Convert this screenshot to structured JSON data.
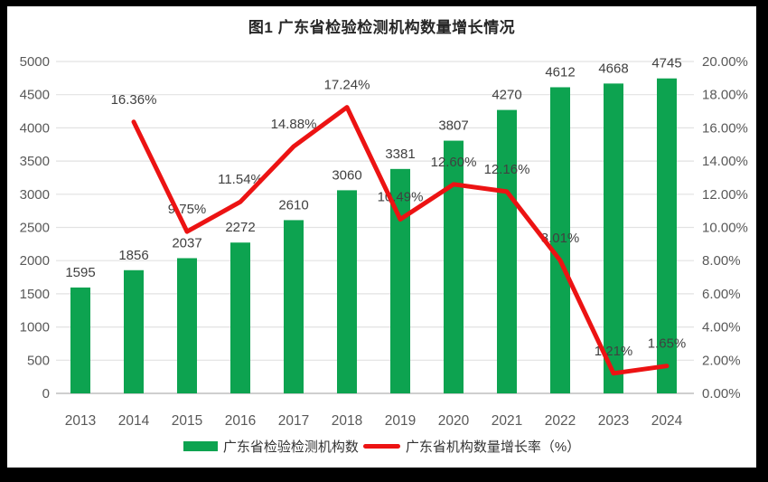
{
  "frame": {
    "border_color": "#000000",
    "canvas_background": "#ffffff"
  },
  "chart_data": {
    "type": "bar",
    "title": "图1 广东省检验检测机构数量增长情况",
    "categories": [
      "2013",
      "2014",
      "2015",
      "2016",
      "2017",
      "2018",
      "2019",
      "2020",
      "2021",
      "2022",
      "2023",
      "2024"
    ],
    "series": [
      {
        "name": "广东省检验检测机构数",
        "type": "bar",
        "axis": "left",
        "color": "#0da350",
        "values": [
          1595,
          1856,
          2037,
          2272,
          2610,
          3060,
          3381,
          3807,
          4270,
          4612,
          4668,
          4745
        ],
        "labels": [
          "1595",
          "1856",
          "2037",
          "2272",
          "2610",
          "3060",
          "3381",
          "3807",
          "4270",
          "4612",
          "4668",
          "4745"
        ]
      },
      {
        "name": "广东省机构数量增长率（%）",
        "type": "line",
        "axis": "right",
        "color": "#ec1313",
        "values": [
          null,
          16.36,
          9.75,
          11.54,
          14.88,
          17.24,
          10.49,
          12.6,
          12.16,
          8.01,
          1.21,
          1.65
        ],
        "labels": [
          null,
          "16.36%",
          "9.75%",
          "11.54%",
          "14.88%",
          "17.24%",
          "10.49%",
          "12.60%",
          "12.16%",
          "8.01%",
          "1.21%",
          "1.65%"
        ]
      }
    ],
    "left_axis": {
      "min": 0,
      "max": 5000,
      "step": 500,
      "ticks": [
        "0",
        "500",
        "1000",
        "1500",
        "2000",
        "2500",
        "3000",
        "3500",
        "4000",
        "4500",
        "5000"
      ]
    },
    "right_axis": {
      "min": 0,
      "max": 20,
      "step": 2,
      "ticks": [
        "0.00%",
        "2.00%",
        "4.00%",
        "6.00%",
        "8.00%",
        "10.00%",
        "12.00%",
        "14.00%",
        "16.00%",
        "18.00%",
        "20.00%"
      ]
    },
    "grid": true,
    "legend_position": "bottom",
    "colors": {
      "gridline": "#e2e2e2",
      "zero_line": "#bfbfbf",
      "axis_tick_text": "#595959",
      "data_label_text": "#404040",
      "title_text": "#262626"
    }
  },
  "legend": {
    "items": [
      {
        "label": "广东省检验检测机构数",
        "swatch": "bar",
        "color": "#0da350"
      },
      {
        "label": "广东省机构数量增长率（%）",
        "swatch": "line",
        "color": "#ec1313"
      }
    ]
  }
}
